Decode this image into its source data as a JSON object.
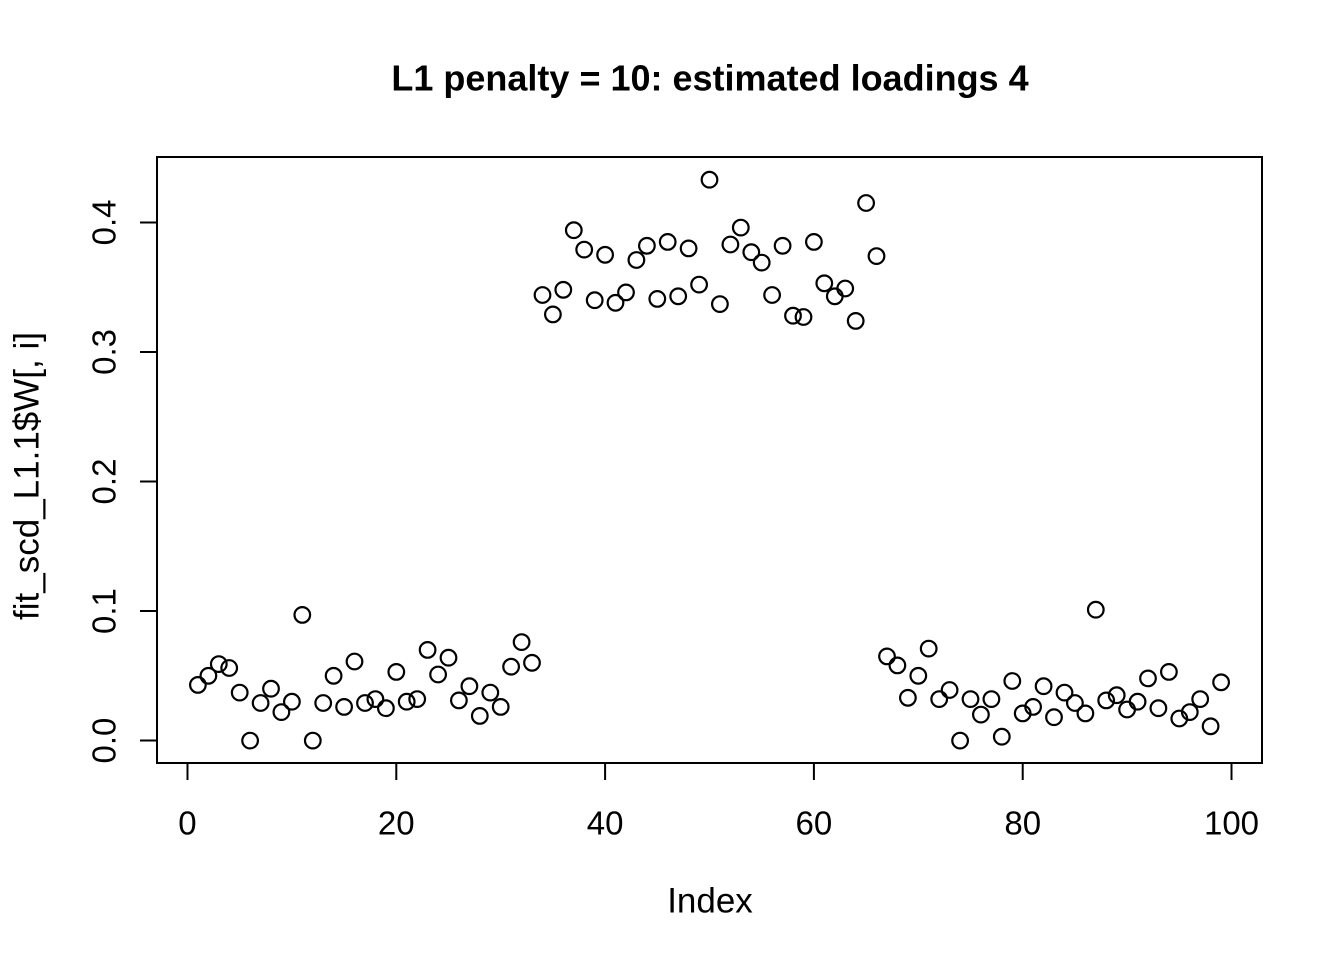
{
  "title": "L1 penalty = 10: estimated loadings 4",
  "axes": {
    "xlabel": "Index",
    "ylabel": "fit_scd_L1.1$W[, i]"
  },
  "chart_data": {
    "type": "scatter",
    "title": "L1 penalty = 10: estimated loadings 4",
    "xlabel": "Index",
    "ylabel": "fit_scd_L1.1$W[, i]",
    "marker": "open-circle",
    "marker_color": "#000000",
    "background_color": "#ffffff",
    "grid": false,
    "legend": null,
    "xlim": [
      -2.92,
      102.92
    ],
    "ylim": [
      -0.01733,
      0.45053
    ],
    "xtick_values": [
      0,
      20,
      40,
      60,
      80,
      100
    ],
    "xtick_labels": [
      "0",
      "20",
      "40",
      "60",
      "80",
      "100"
    ],
    "ytick_values": [
      0.0,
      0.1,
      0.2,
      0.3,
      0.4
    ],
    "ytick_labels": [
      "0.0",
      "0.1",
      "0.2",
      "0.3",
      "0.4"
    ],
    "x": [
      1,
      2,
      3,
      4,
      5,
      6,
      7,
      8,
      9,
      10,
      11,
      12,
      13,
      14,
      15,
      16,
      17,
      18,
      19,
      20,
      21,
      22,
      23,
      24,
      25,
      26,
      27,
      28,
      29,
      30,
      31,
      32,
      33,
      34,
      35,
      36,
      37,
      38,
      39,
      40,
      41,
      42,
      43,
      44,
      45,
      46,
      47,
      48,
      49,
      50,
      51,
      52,
      53,
      54,
      55,
      56,
      57,
      58,
      59,
      60,
      61,
      62,
      63,
      64,
      65,
      66,
      67,
      68,
      69,
      70,
      71,
      72,
      73,
      74,
      75,
      76,
      77,
      78,
      79,
      80,
      81,
      82,
      83,
      84,
      85,
      86,
      87,
      88,
      89,
      90,
      91,
      92,
      93,
      94,
      95,
      96,
      97,
      98,
      99
    ],
    "y": [
      0.043,
      0.05,
      0.059,
      0.056,
      0.037,
      0.0,
      0.029,
      0.04,
      0.022,
      0.03,
      0.097,
      0.0,
      0.029,
      0.05,
      0.026,
      0.061,
      0.029,
      0.032,
      0.025,
      0.053,
      0.03,
      0.032,
      0.07,
      0.051,
      0.064,
      0.031,
      0.042,
      0.019,
      0.037,
      0.026,
      0.057,
      0.076,
      0.06,
      0.344,
      0.329,
      0.348,
      0.394,
      0.379,
      0.34,
      0.375,
      0.338,
      0.346,
      0.371,
      0.382,
      0.341,
      0.385,
      0.343,
      0.38,
      0.352,
      0.433,
      0.337,
      0.383,
      0.396,
      0.377,
      0.369,
      0.344,
      0.382,
      0.328,
      0.327,
      0.385,
      0.353,
      0.343,
      0.349,
      0.324,
      0.415,
      0.374,
      0.065,
      0.058,
      0.033,
      0.05,
      0.071,
      0.032,
      0.039,
      0.0,
      0.032,
      0.02,
      0.032,
      0.003,
      0.046,
      0.021,
      0.026,
      0.042,
      0.018,
      0.037,
      0.029,
      0.021,
      0.101,
      0.031,
      0.035,
      0.024,
      0.03,
      0.048,
      0.025,
      0.053,
      0.017,
      0.022,
      0.032,
      0.011,
      0.045
    ]
  }
}
